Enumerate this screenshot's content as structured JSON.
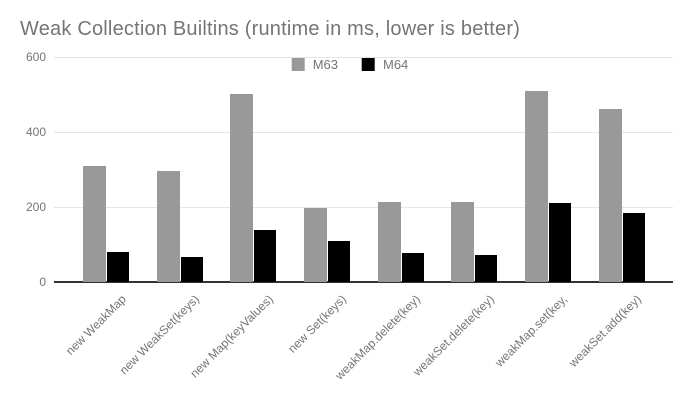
{
  "chart_data": {
    "type": "bar",
    "title": "Weak Collection Builtins (runtime in ms, lower is better)",
    "xlabel": "",
    "ylabel": "",
    "categories": [
      "new WeakMap",
      "new WeakSet(keys)",
      "new Map(keyValues)",
      "new Set(keys)",
      "weakMap.delete(key)",
      "weakSet.delete(key)",
      "weakMap.set(key,",
      "weakSet.add(key)"
    ],
    "series": [
      {
        "name": "M63",
        "color": "#999999",
        "values": [
          310,
          297,
          502,
          197,
          213,
          213,
          509,
          462
        ]
      },
      {
        "name": "M64",
        "color": "#000000",
        "values": [
          80,
          66,
          139,
          110,
          78,
          73,
          211,
          184
        ]
      }
    ],
    "ylim": [
      0,
      600
    ],
    "yticks": [
      600,
      400,
      200,
      0
    ],
    "grid": true,
    "legend_position": "top-center",
    "colors": {
      "title_text": "#757575",
      "axis_text": "#757575",
      "gridline": "#e6e6e6",
      "axis_line": "#333333",
      "background": "#ffffff"
    }
  }
}
